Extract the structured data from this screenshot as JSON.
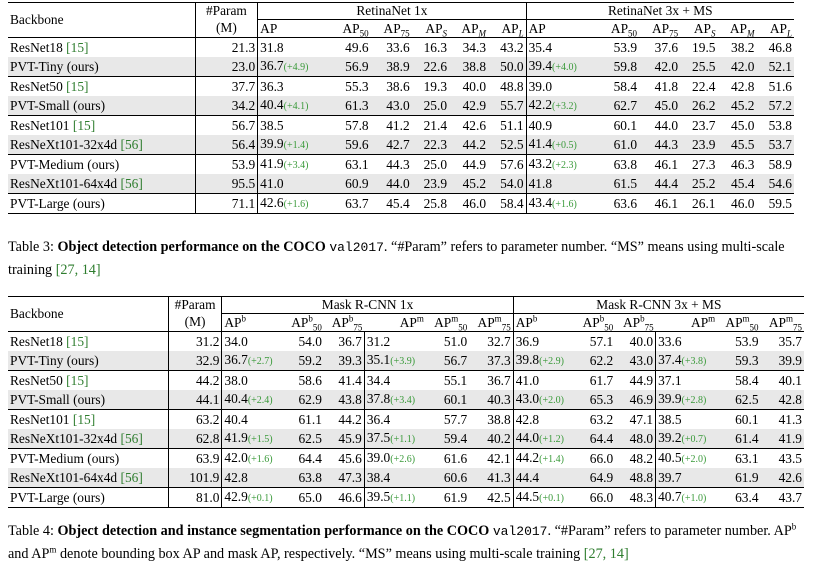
{
  "table3": {
    "header": {
      "backbone": "Backbone",
      "param": "#Param",
      "param_unit": "(M)",
      "group1": "RetinaNet 1x",
      "group2": "RetinaNet 3x + MS",
      "metrics": [
        "AP",
        "AP50",
        "AP75",
        "APS",
        "APM",
        "APL"
      ]
    },
    "rows": [
      {
        "name": "ResNet18",
        "cite": "[15]",
        "param": "21.3",
        "g1": [
          "31.8",
          "49.6",
          "33.6",
          "16.3",
          "34.3",
          "43.2"
        ],
        "g1_gain": "",
        "g2": [
          "35.4",
          "53.9",
          "37.6",
          "19.5",
          "38.2",
          "46.8"
        ],
        "g2_gain": ""
      },
      {
        "name": "PVT-Tiny (ours)",
        "cite": "",
        "param": "23.0",
        "g1": [
          "36.7",
          "56.9",
          "38.9",
          "22.6",
          "38.8",
          "50.0"
        ],
        "g1_gain": "(+4.9)",
        "g2": [
          "39.4",
          "59.8",
          "42.0",
          "25.5",
          "42.0",
          "52.1"
        ],
        "g2_gain": "(+4.0)"
      },
      {
        "name": "ResNet50",
        "cite": "[15]",
        "param": "37.7",
        "g1": [
          "36.3",
          "55.3",
          "38.6",
          "19.3",
          "40.0",
          "48.8"
        ],
        "g1_gain": "",
        "g2": [
          "39.0",
          "58.4",
          "41.8",
          "22.4",
          "42.8",
          "51.6"
        ],
        "g2_gain": ""
      },
      {
        "name": "PVT-Small (ours)",
        "cite": "",
        "param": "34.2",
        "g1": [
          "40.4",
          "61.3",
          "43.0",
          "25.0",
          "42.9",
          "55.7"
        ],
        "g1_gain": "(+4.1)",
        "g2": [
          "42.2",
          "62.7",
          "45.0",
          "26.2",
          "45.2",
          "57.2"
        ],
        "g2_gain": "(+3.2)"
      },
      {
        "name": "ResNet101",
        "cite": "[15]",
        "param": "56.7",
        "g1": [
          "38.5",
          "57.8",
          "41.2",
          "21.4",
          "42.6",
          "51.1"
        ],
        "g1_gain": "",
        "g2": [
          "40.9",
          "60.1",
          "44.0",
          "23.7",
          "45.0",
          "53.8"
        ],
        "g2_gain": ""
      },
      {
        "name": "ResNeXt101-32x4d",
        "cite": "[56]",
        "param": "56.4",
        "g1": [
          "39.9",
          "59.6",
          "42.7",
          "22.3",
          "44.2",
          "52.5"
        ],
        "g1_gain": "(+1.4)",
        "g2": [
          "41.4",
          "61.0",
          "44.3",
          "23.9",
          "45.5",
          "53.7"
        ],
        "g2_gain": "(+0.5)"
      },
      {
        "name": "PVT-Medium (ours)",
        "cite": "",
        "param": "53.9",
        "g1": [
          "41.9",
          "63.1",
          "44.3",
          "25.0",
          "44.9",
          "57.6"
        ],
        "g1_gain": "(+3.4)",
        "g2": [
          "43.2",
          "63.8",
          "46.1",
          "27.3",
          "46.3",
          "58.9"
        ],
        "g2_gain": "(+2.3)"
      },
      {
        "name": "ResNeXt101-64x4d",
        "cite": "[56]",
        "param": "95.5",
        "g1": [
          "41.0",
          "60.9",
          "44.0",
          "23.9",
          "45.2",
          "54.0"
        ],
        "g1_gain": "",
        "g2": [
          "41.8",
          "61.5",
          "44.4",
          "25.2",
          "45.4",
          "54.6"
        ],
        "g2_gain": ""
      },
      {
        "name": "PVT-Large (ours)",
        "cite": "",
        "param": "71.1",
        "g1": [
          "42.6",
          "63.7",
          "45.4",
          "25.8",
          "46.0",
          "58.4"
        ],
        "g1_gain": "(+1.6)",
        "g2": [
          "43.4",
          "63.6",
          "46.1",
          "26.1",
          "46.0",
          "59.5"
        ],
        "g2_gain": "(+1.6)"
      }
    ],
    "caption": {
      "label": "Table 3:",
      "bold": "Object detection performance on the COCO",
      "code": "val2017",
      "rest": ". “#Param” refers to parameter number. “MS” means using multi-scale training",
      "cites": "[27, 14]"
    }
  },
  "table4": {
    "header": {
      "backbone": "Backbone",
      "param": "#Param",
      "param_unit": "(M)",
      "group1": "Mask R-CNN 1x",
      "group2": "Mask R-CNN 3x + MS",
      "metrics": [
        "APb",
        "APb50",
        "APb75",
        "APm",
        "APm50",
        "APm75"
      ]
    },
    "rows": [
      {
        "name": "ResNet18",
        "cite": "[15]",
        "param": "31.2",
        "g1": [
          "34.0",
          "54.0",
          "36.7",
          "31.2",
          "51.0",
          "32.7"
        ],
        "g1_gain": [
          "",
          ""
        ],
        "g2": [
          "36.9",
          "57.1",
          "40.0",
          "33.6",
          "53.9",
          "35.7"
        ],
        "g2_gain": [
          "",
          ""
        ]
      },
      {
        "name": "PVT-Tiny (ours)",
        "cite": "",
        "param": "32.9",
        "g1": [
          "36.7",
          "59.2",
          "39.3",
          "35.1",
          "56.7",
          "37.3"
        ],
        "g1_gain": [
          "(+2.7)",
          "(+3.9)"
        ],
        "g2": [
          "39.8",
          "62.2",
          "43.0",
          "37.4",
          "59.3",
          "39.9"
        ],
        "g2_gain": [
          "(+2.9)",
          "(+3.8)"
        ]
      },
      {
        "name": "ResNet50",
        "cite": "[15]",
        "param": "44.2",
        "g1": [
          "38.0",
          "58.6",
          "41.4",
          "34.4",
          "55.1",
          "36.7"
        ],
        "g1_gain": [
          "",
          ""
        ],
        "g2": [
          "41.0",
          "61.7",
          "44.9",
          "37.1",
          "58.4",
          "40.1"
        ],
        "g2_gain": [
          "",
          ""
        ]
      },
      {
        "name": "PVT-Small (ours)",
        "cite": "",
        "param": "44.1",
        "g1": [
          "40.4",
          "62.9",
          "43.8",
          "37.8",
          "60.1",
          "40.3"
        ],
        "g1_gain": [
          "(+2.4)",
          "(+3.4)"
        ],
        "g2": [
          "43.0",
          "65.3",
          "46.9",
          "39.9",
          "62.5",
          "42.8"
        ],
        "g2_gain": [
          "(+2.0)",
          "(+2.8)"
        ]
      },
      {
        "name": "ResNet101",
        "cite": "[15]",
        "param": "63.2",
        "g1": [
          "40.4",
          "61.1",
          "44.2",
          "36.4",
          "57.7",
          "38.8"
        ],
        "g1_gain": [
          "",
          ""
        ],
        "g2": [
          "42.8",
          "63.2",
          "47.1",
          "38.5",
          "60.1",
          "41.3"
        ],
        "g2_gain": [
          "",
          ""
        ]
      },
      {
        "name": "ResNeXt101-32x4d",
        "cite": "[56]",
        "param": "62.8",
        "g1": [
          "41.9",
          "62.5",
          "45.9",
          "37.5",
          "59.4",
          "40.2"
        ],
        "g1_gain": [
          "(+1.5)",
          "(+1.1)"
        ],
        "g2": [
          "44.0",
          "64.4",
          "48.0",
          "39.2",
          "61.4",
          "41.9"
        ],
        "g2_gain": [
          "(+1.2)",
          "(+0.7)"
        ]
      },
      {
        "name": "PVT-Medium (ours)",
        "cite": "",
        "param": "63.9",
        "g1": [
          "42.0",
          "64.4",
          "45.6",
          "39.0",
          "61.6",
          "42.1"
        ],
        "g1_gain": [
          "(+1.6)",
          "(+2.6)"
        ],
        "g2": [
          "44.2",
          "66.0",
          "48.2",
          "40.5",
          "63.1",
          "43.5"
        ],
        "g2_gain": [
          "(+1.4)",
          "(+2.0)"
        ]
      },
      {
        "name": "ResNeXt101-64x4d",
        "cite": "[56]",
        "param": "101.9",
        "g1": [
          "42.8",
          "63.8",
          "47.3",
          "38.4",
          "60.6",
          "41.3"
        ],
        "g1_gain": [
          "",
          ""
        ],
        "g2": [
          "44.4",
          "64.9",
          "48.8",
          "39.7",
          "61.9",
          "42.6"
        ],
        "g2_gain": [
          "",
          ""
        ]
      },
      {
        "name": "PVT-Large (ours)",
        "cite": "",
        "param": "81.0",
        "g1": [
          "42.9",
          "65.0",
          "46.6",
          "39.5",
          "61.9",
          "42.5"
        ],
        "g1_gain": [
          "(+0.1)",
          "(+1.1)"
        ],
        "g2": [
          "44.5",
          "66.0",
          "48.3",
          "40.7",
          "63.4",
          "43.7"
        ],
        "g2_gain": [
          "(+0.1)",
          "(+1.0)"
        ]
      }
    ],
    "caption": {
      "label": "Table 4:",
      "bold": "Object detection and instance segmentation performance on the COCO",
      "code": "val2017",
      "rest1": ". “#Param” refers to parameter number. AP",
      "rest2": " and AP",
      "rest3": " denote bounding box AP and mask AP, respectively. “MS” means using multi-scale training",
      "sup_b": "b",
      "sup_m": "m",
      "cites": "[27, 14]"
    }
  }
}
